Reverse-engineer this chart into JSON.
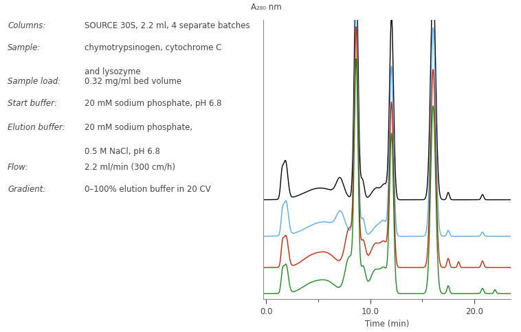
{
  "ylabel": "A₂₈₀ nm",
  "xlabel": "Time (min)",
  "xlim": [
    -0.3,
    23.5
  ],
  "ylim": [
    -0.02,
    1.05
  ],
  "xtick_major": [
    0.0,
    10.0,
    20.0
  ],
  "xtick_minor": [
    5.0,
    15.0
  ],
  "colors": [
    "#000000",
    "#55aaee",
    "#cc2200",
    "#1a8a1a"
  ],
  "offsets": [
    0.36,
    0.22,
    0.1,
    0.0
  ],
  "peak_scales": [
    1.0,
    0.75,
    0.68,
    0.62
  ],
  "text_color": "#444444",
  "info_lines": [
    [
      "Columns:",
      "SOURCE 30S, 2.2 ml, 4 separate batches"
    ],
    [
      "Sample:",
      "chymotrypsinogen, cytochrome C\nand lysozyme"
    ],
    [
      "Sample load:",
      "0.32 mg/ml bed volume"
    ],
    [
      "Start buffer:",
      "20 mM sodium phosphate, pH 6.8"
    ],
    [
      "Elution buffer:",
      "20 mM sodium phosphate,\n0.5 M NaCl, pH 6.8"
    ],
    [
      "Flow:",
      "2.2 ml/min (300 cm/h)"
    ],
    [
      "Gradient:",
      "0–100% elution buffer in 20 CV"
    ]
  ]
}
